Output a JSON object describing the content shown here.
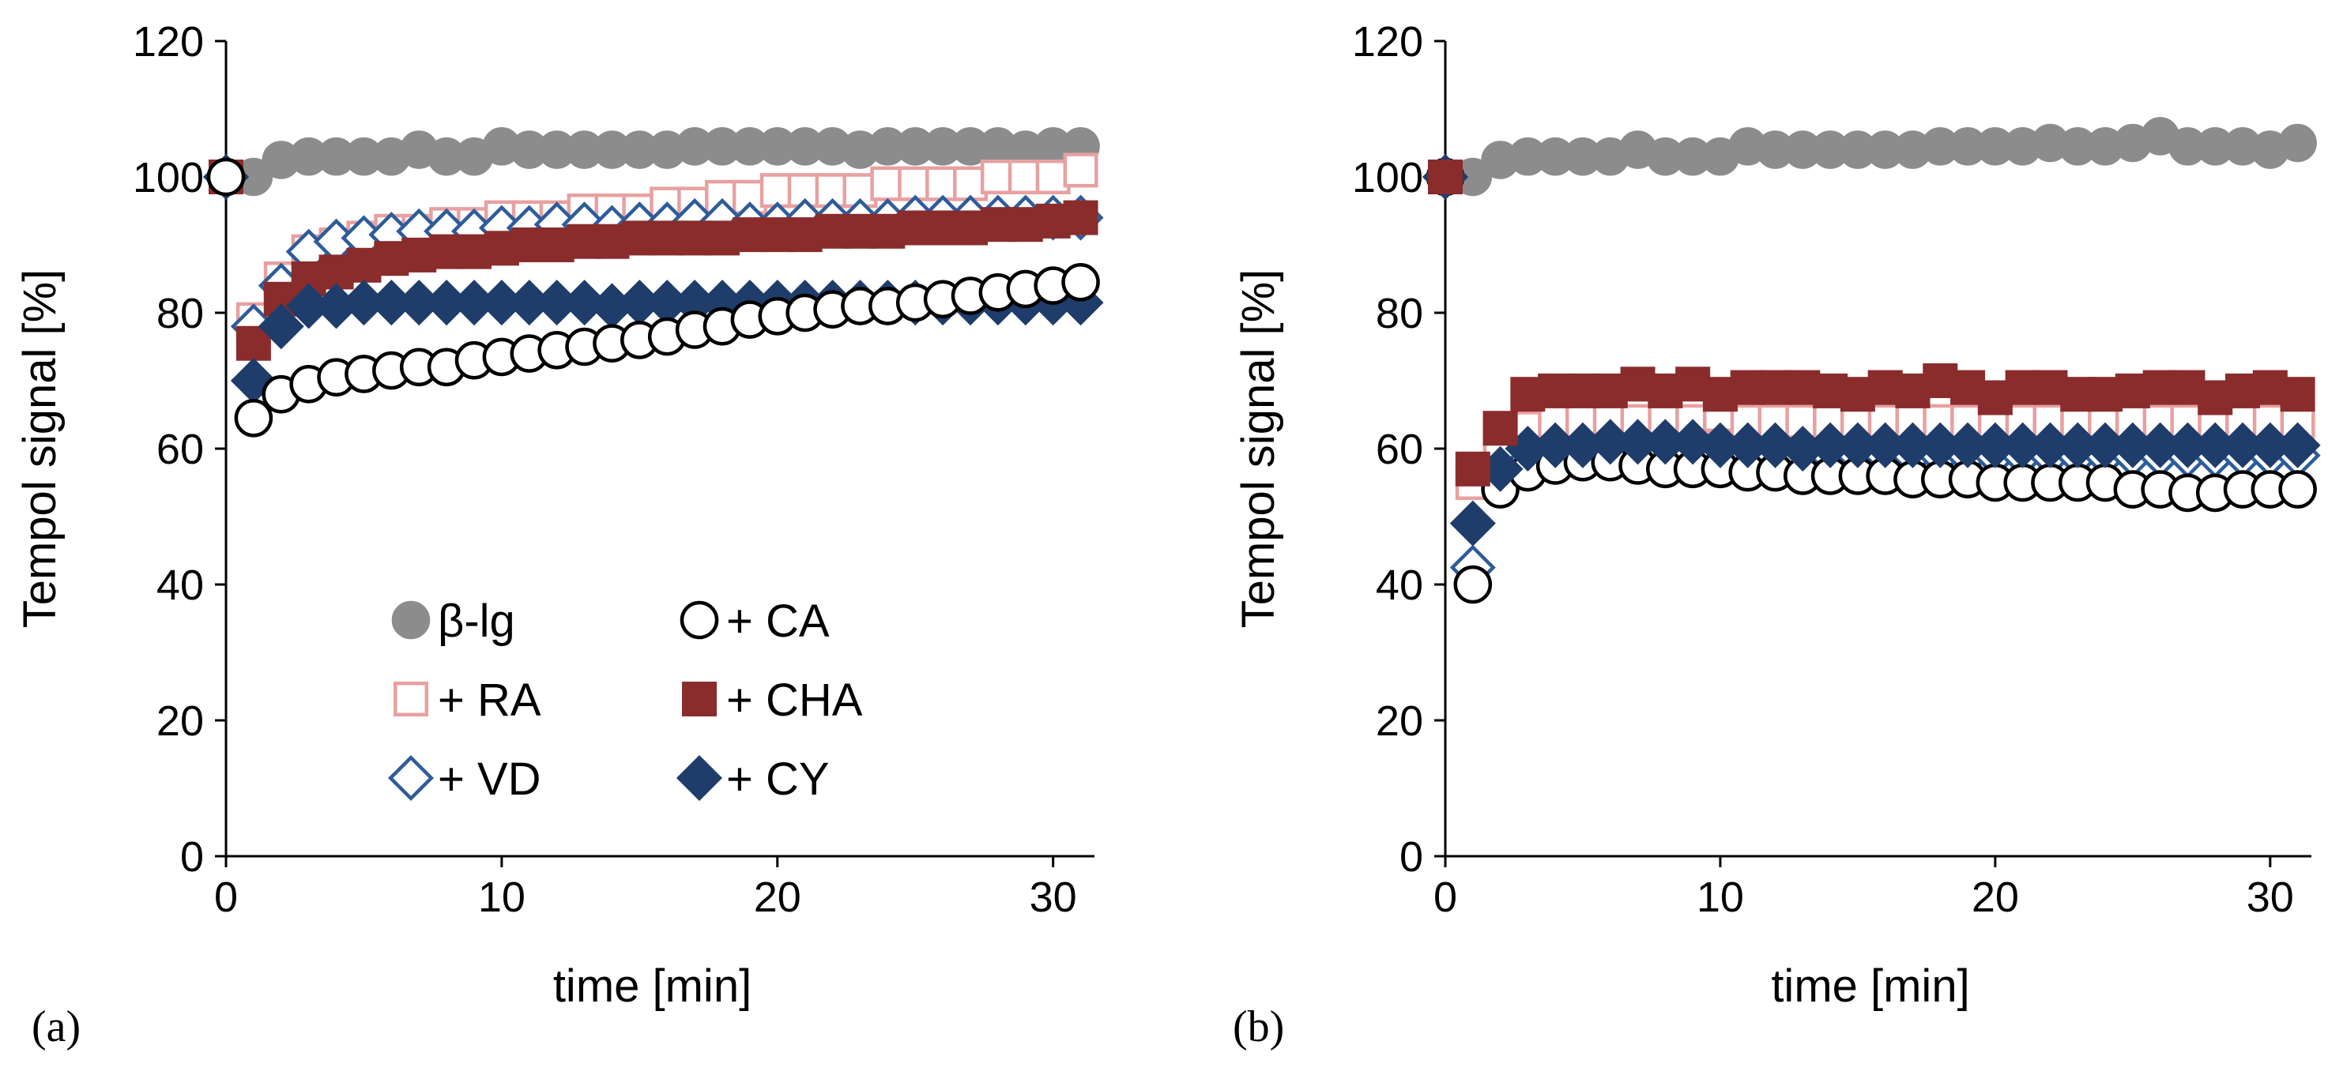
{
  "chart_data": [
    {
      "type": "scatter",
      "panel_label": "(a)",
      "xlabel": "time [min]",
      "ylabel": "Tempol signal [%]",
      "xlim": [
        0,
        31.5
      ],
      "ylim": [
        0,
        120
      ],
      "xticks": [
        0,
        10,
        20,
        30
      ],
      "yticks": [
        0,
        20,
        40,
        60,
        80,
        100,
        120
      ],
      "x": [
        0,
        1,
        2,
        3,
        4,
        5,
        6,
        7,
        8,
        9,
        10,
        11,
        12,
        13,
        14,
        15,
        16,
        17,
        18,
        19,
        20,
        21,
        22,
        23,
        24,
        25,
        26,
        27,
        28,
        29,
        30,
        31
      ],
      "legend": {
        "placement": "lower-center",
        "entries": [
          "β-lg",
          "+ CA",
          "+ RA",
          "+ CHA",
          "+ VD",
          "+ CY"
        ]
      },
      "series": [
        {
          "name": "β-lg",
          "marker": "circle",
          "filled": true,
          "color": "#8c8c8c",
          "values": [
            100,
            100,
            102.5,
            103,
            103,
            103,
            103,
            104,
            103,
            103,
            104.5,
            104,
            104,
            104,
            104,
            104,
            104,
            104.5,
            104.5,
            104.5,
            104.5,
            104.5,
            104.5,
            104,
            104.5,
            104.5,
            104.5,
            104.5,
            104.5,
            104,
            104.5,
            104.5
          ]
        },
        {
          "name": "+ RA",
          "marker": "square",
          "filled": false,
          "color": "#e8a0a0",
          "values": [
            100,
            79,
            85,
            89,
            90,
            91,
            92,
            92,
            93,
            93,
            94,
            94,
            94,
            95,
            95,
            95,
            96,
            96,
            97,
            97,
            98,
            98,
            98,
            98,
            99,
            99,
            99,
            99,
            100,
            100,
            100,
            101
          ]
        },
        {
          "name": "+ VD",
          "marker": "diamond",
          "filled": false,
          "color": "#2e5c9a",
          "values": [
            100,
            78,
            84,
            89,
            90.5,
            91,
            91.5,
            92,
            92,
            92,
            92.5,
            92.5,
            93,
            93,
            92.5,
            93,
            93,
            93.5,
            93.5,
            93,
            93,
            93.5,
            93.5,
            93.5,
            93.5,
            94,
            94,
            94,
            94,
            94,
            94,
            94
          ]
        },
        {
          "name": "+ CHA",
          "marker": "square",
          "filled": true,
          "color": "#8a2c2c",
          "values": [
            100,
            75.5,
            82,
            85,
            86,
            87,
            88,
            88.5,
            89,
            89,
            89.5,
            90,
            90,
            90.5,
            90.5,
            91,
            91,
            91,
            91,
            91.5,
            91.5,
            91.5,
            92,
            92,
            92,
            92.5,
            92.5,
            92.5,
            93,
            93,
            93.5,
            94
          ]
        },
        {
          "name": "+ CY",
          "marker": "diamond",
          "filled": true,
          "color": "#1f3d6b",
          "values": [
            100,
            70,
            78,
            81,
            81,
            81.5,
            81.5,
            81.5,
            81.5,
            81.5,
            81.5,
            81.5,
            81.5,
            81.5,
            81,
            81.5,
            81.5,
            81.5,
            81.5,
            81.5,
            81.5,
            81.5,
            81.5,
            81.5,
            81.5,
            81.5,
            81.5,
            81.5,
            81.5,
            81.5,
            81.5,
            81.5
          ]
        },
        {
          "name": "+ CA",
          "marker": "circle",
          "filled": false,
          "color": "#000000",
          "values": [
            100,
            64.5,
            68,
            69.5,
            70.5,
            71,
            71.5,
            72,
            72,
            73,
            73.5,
            74,
            74.5,
            75,
            75.5,
            76,
            76.5,
            77.5,
            78,
            79,
            79.5,
            80,
            80.5,
            81,
            81,
            81.5,
            82,
            82.5,
            83,
            83.5,
            84,
            84.5
          ]
        }
      ]
    },
    {
      "type": "scatter",
      "panel_label": "(b)",
      "xlabel": "time [min]",
      "ylabel": "Tempol signal [%]",
      "xlim": [
        0,
        31.5
      ],
      "ylim": [
        0,
        120
      ],
      "xticks": [
        0,
        10,
        20,
        30
      ],
      "yticks": [
        0,
        20,
        40,
        60,
        80,
        100,
        120
      ],
      "x": [
        0,
        1,
        2,
        3,
        4,
        5,
        6,
        7,
        8,
        9,
        10,
        11,
        12,
        13,
        14,
        15,
        16,
        17,
        18,
        19,
        20,
        21,
        22,
        23,
        24,
        25,
        26,
        27,
        28,
        29,
        30,
        31
      ],
      "series": [
        {
          "name": "β-lg",
          "marker": "circle",
          "filled": true,
          "color": "#8c8c8c",
          "values": [
            100,
            100,
            102.5,
            103,
            103,
            103,
            103,
            104,
            103,
            103,
            103,
            104.5,
            104,
            104,
            104,
            104,
            104,
            104,
            104.5,
            104.5,
            104.5,
            104.5,
            105,
            104.5,
            104.5,
            105,
            106,
            104.5,
            104.5,
            104.5,
            104,
            105
          ]
        },
        {
          "name": "+ RA",
          "marker": "square",
          "filled": false,
          "color": "#e8a0a0",
          "values": [
            100,
            55,
            60,
            63,
            64,
            64,
            64,
            64,
            64,
            64,
            65,
            64,
            64,
            64,
            64,
            64,
            64,
            64,
            64,
            64,
            64,
            64,
            64,
            64,
            64,
            64,
            64,
            64,
            64,
            64,
            64,
            64
          ]
        },
        {
          "name": "+ VD",
          "marker": "diamond",
          "filled": false,
          "color": "#2e5c9a",
          "values": [
            100,
            42.5,
            56,
            58,
            59,
            59,
            59,
            59,
            59,
            59,
            59,
            59,
            59,
            59,
            59,
            59,
            59,
            59,
            59,
            59,
            59,
            59,
            59,
            59,
            59,
            59,
            59,
            59,
            59,
            59,
            59,
            59
          ]
        },
        {
          "name": "+ CA",
          "marker": "circle",
          "filled": false,
          "color": "#000000",
          "values": [
            100,
            40,
            54,
            56.5,
            57.5,
            58,
            58,
            57.5,
            57,
            57,
            57,
            56.5,
            56.5,
            56,
            56,
            56,
            56,
            55.5,
            55.5,
            55.5,
            55,
            55,
            55,
            55,
            55,
            54,
            54,
            53.5,
            53.5,
            54,
            54,
            54
          ]
        },
        {
          "name": "+ CY",
          "marker": "diamond",
          "filled": true,
          "color": "#1f3d6b",
          "values": [
            100,
            49,
            57,
            60,
            60.5,
            60.5,
            61,
            61,
            61,
            61,
            60.5,
            60.5,
            60.5,
            60,
            60.5,
            60.5,
            60.5,
            60.5,
            60.5,
            60.5,
            60.5,
            60.5,
            60.5,
            60.5,
            60.5,
            60.5,
            60.5,
            60.5,
            60.5,
            60.5,
            60.5,
            60.5
          ]
        },
        {
          "name": "+ CHA",
          "marker": "square",
          "filled": true,
          "color": "#8a2c2c",
          "values": [
            100,
            57,
            63,
            68,
            68.5,
            68.5,
            68.5,
            69.5,
            68.5,
            69.5,
            68,
            69,
            69,
            69,
            68.5,
            68,
            69,
            68.5,
            70,
            69,
            67.5,
            69,
            69,
            68,
            68,
            68.5,
            69,
            69,
            67.5,
            68.5,
            69,
            68
          ]
        }
      ]
    }
  ]
}
